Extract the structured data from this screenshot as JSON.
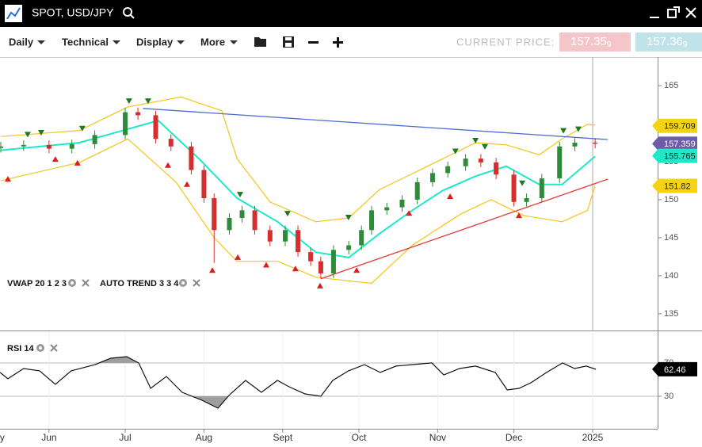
{
  "header": {
    "title": "SPOT, USD/JPY"
  },
  "toolbar": {
    "menus": [
      "Daily",
      "Technical",
      "Display",
      "More"
    ],
    "price_label": "CURRENT PRICE:",
    "bid": "157.35",
    "bid_pip": "9",
    "ask": "157.36",
    "ask_pip": "9"
  },
  "chart_data": [
    {
      "type": "candlestick",
      "indicators": [
        "VWAP 20 1 2 3",
        "AUTO TREND 3 3 4"
      ],
      "x": [
        -19,
        -10,
        0,
        9,
        18,
        30,
        35,
        42,
        48,
        56,
        61,
        65,
        71,
        76,
        81,
        87,
        93,
        98,
        103,
        107,
        112,
        118,
        123,
        127,
        133,
        139,
        145,
        151,
        157,
        164,
        170,
        176,
        183,
        188,
        194,
        201,
        207,
        215
      ],
      "open": [
        156.8,
        157.0,
        157.2,
        156.7,
        157.3,
        158.5,
        161.5,
        161.1,
        158.0,
        157.0,
        153.9,
        150.2,
        146.0,
        147.6,
        148.6,
        146.0,
        144.5,
        146.0,
        143.1,
        141.9,
        140.3,
        143.4,
        144.0,
        146.0,
        148.6,
        149.0,
        150.0,
        152.3,
        153.5,
        154.4,
        155.4,
        154.9,
        153.3,
        149.7,
        150.2,
        152.8,
        157.0,
        157.5
      ],
      "high": [
        157.6,
        157.8,
        157.8,
        157.9,
        159.1,
        162.1,
        162.1,
        161.7,
        158.6,
        157.6,
        154.5,
        150.8,
        148.2,
        149.2,
        149.2,
        146.6,
        146.6,
        146.6,
        143.7,
        142.5,
        144.0,
        144.6,
        146.6,
        149.2,
        149.6,
        150.6,
        152.9,
        154.1,
        155.0,
        156.0,
        156.0,
        155.5,
        153.9,
        150.8,
        153.4,
        157.6,
        158.1,
        158.1
      ],
      "low": [
        156.2,
        156.4,
        156.1,
        156.1,
        156.7,
        157.9,
        160.5,
        157.4,
        156.4,
        153.3,
        149.6,
        141.7,
        145.4,
        147.0,
        145.4,
        143.9,
        143.9,
        142.5,
        141.3,
        139.6,
        139.7,
        142.8,
        143.4,
        145.4,
        148.0,
        148.4,
        149.4,
        151.7,
        152.9,
        153.8,
        154.3,
        152.7,
        149.1,
        149.1,
        149.6,
        152.2,
        156.4,
        156.76
      ],
      "close": [
        157.0,
        157.2,
        156.7,
        157.3,
        158.5,
        161.5,
        161.1,
        158.0,
        157.0,
        153.9,
        150.2,
        146.0,
        147.6,
        148.6,
        146.0,
        144.5,
        146.0,
        143.1,
        141.9,
        140.3,
        143.4,
        144.0,
        146.0,
        148.6,
        149.0,
        150.0,
        152.3,
        153.5,
        154.4,
        155.4,
        154.9,
        153.3,
        149.7,
        150.2,
        152.8,
        157.0,
        157.5,
        157.36
      ],
      "up_color": "#2e8b3a",
      "down_color": "#d32f2f",
      "series": [
        {
          "color": "#1de9c8",
          "x": [
            -19,
            12,
            43,
            59,
            74,
            90,
            105,
            118,
            130,
            143,
            155,
            168,
            180,
            193,
            202,
            215
          ],
          "values": [
            156.5,
            157.5,
            160.4,
            155.4,
            150.2,
            147.1,
            143.1,
            142.4,
            145.5,
            148.6,
            151.2,
            153.1,
            154.4,
            152.0,
            152.0,
            155.7
          ]
        },
        {
          "color": "#f5c518",
          "x": [
            -19,
            12,
            31,
            52,
            68,
            74,
            87,
            105,
            118,
            130,
            149,
            168,
            180,
            193,
            202,
            212,
            215
          ],
          "values": [
            158.3,
            159.1,
            162.2,
            163.5,
            161.7,
            155.4,
            149.7,
            147.1,
            147.6,
            151.3,
            154.4,
            157.5,
            157.2,
            155.9,
            158.0,
            159.9,
            159.8
          ]
        },
        {
          "color": "#f5c518",
          "x": [
            -19,
            12,
            31,
            50,
            65,
            74,
            90,
            105,
            127,
            143,
            162,
            174,
            187,
            202,
            212,
            215
          ],
          "values": [
            152.5,
            154.9,
            158.0,
            152.3,
            145.0,
            141.9,
            141.9,
            139.8,
            139.0,
            144.0,
            148.1,
            150.0,
            147.9,
            147.1,
            148.6,
            151.8
          ]
        }
      ],
      "trend_lines": [
        {
          "color": "#4a6fd1",
          "x": [
            37,
            220
          ],
          "values": [
            162.0,
            157.9
          ]
        },
        {
          "color": "#e53935",
          "x": [
            107,
            220
          ],
          "values": [
            139.6,
            152.7
          ]
        }
      ],
      "signals": [
        {
          "direction": "down",
          "color": "#1f7a1f",
          "x": [
            -8.4,
            -3.1,
            13.1,
            31.5,
            39.0,
            75.2,
            93.9,
            117.9,
            160.0,
            167.9,
            171.6,
            186.3,
            202.5,
            208.4
          ],
          "values": [
            158.5,
            158.75,
            159.3,
            162.9,
            162.9,
            150.6,
            148.1,
            147.6,
            156.3,
            157.7,
            156.9,
            152.1,
            159.0,
            159.2
          ]
        },
        {
          "direction": "up",
          "color": "#e01b1b",
          "x": [
            -16.2,
            2.5,
            11.2,
            46.8,
            54.3,
            64.3,
            74.3,
            85.5,
            97.0,
            106.7,
            121.1,
            141.7,
            157.9,
            185.0
          ],
          "values": [
            152.8,
            155.4,
            154.9,
            154.6,
            152.1,
            140.8,
            142.5,
            141.5,
            141.0,
            138.75,
            140.8,
            148.3,
            150.5,
            148.0
          ]
        }
      ],
      "price_labels": [
        {
          "value": 159.709,
          "color": "#f5d312",
          "text_color": "#222222"
        },
        {
          "value": 157.359,
          "color": "#6b5ba8",
          "text_color": "#ffffff"
        },
        {
          "value": 155.765,
          "color": "#1de9c8",
          "text_color": "#222222"
        },
        {
          "value": 151.82,
          "color": "#f5d312",
          "text_color": "#222222"
        }
      ],
      "xlim": [
        -19.3,
        239.6
      ],
      "ylim": [
        132.8,
        168.75
      ],
      "yticks": [
        135,
        140,
        145,
        150,
        155,
        160,
        165
      ]
    },
    {
      "type": "line",
      "indicators": [
        "RSI 14"
      ],
      "x": [
        -19.3,
        -16.2,
        -10,
        -3.7,
        2.5,
        8.7,
        18.1,
        24.3,
        30.6,
        35.3,
        40,
        46.2,
        52.4,
        60.2,
        66.5,
        71.1,
        77.4,
        83.6,
        89.9,
        94.5,
        100.8,
        107,
        111.7,
        117.9,
        124.2,
        130.4,
        136.6,
        142.9,
        150.7,
        155.4,
        161.6,
        167.9,
        175.7,
        180.4,
        185,
        189.7,
        195.9,
        202.2,
        206.9,
        211.5,
        215.3
      ],
      "values": [
        58.6,
        51,
        63.3,
        60.5,
        44.3,
        60.5,
        68,
        75.7,
        77.6,
        70,
        39.5,
        53.8,
        34.8,
        25.2,
        15.7,
        31.9,
        49,
        34.8,
        49,
        41.4,
        32.9,
        30,
        49,
        60.5,
        68,
        58.6,
        66.2,
        68,
        70,
        55.7,
        63.3,
        66.2,
        58.6,
        37.6,
        39.5,
        46.2,
        58.6,
        70,
        63.3,
        66.2,
        62.46
      ],
      "color": "#111111",
      "fill_color": "#9e9e9e",
      "price_labels": [
        {
          "value": 62.46,
          "color": "#000000",
          "text_color": "#ffffff"
        }
      ],
      "xlim": [
        -19.3,
        239.6
      ],
      "ylim": [
        -9,
        108
      ],
      "yticks": [
        30,
        70
      ],
      "xticks": [
        {
          "value": -21,
          "label": "May"
        },
        {
          "value": 0,
          "label": "Jun"
        },
        {
          "value": 30,
          "label": "Jul"
        },
        {
          "value": 61,
          "label": "Aug"
        },
        {
          "value": 92,
          "label": "Sept"
        },
        {
          "value": 122,
          "label": "Oct"
        },
        {
          "value": 153,
          "label": "Nov"
        },
        {
          "value": 183,
          "label": "Dec"
        },
        {
          "value": 214,
          "label": "2025"
        }
      ]
    }
  ]
}
